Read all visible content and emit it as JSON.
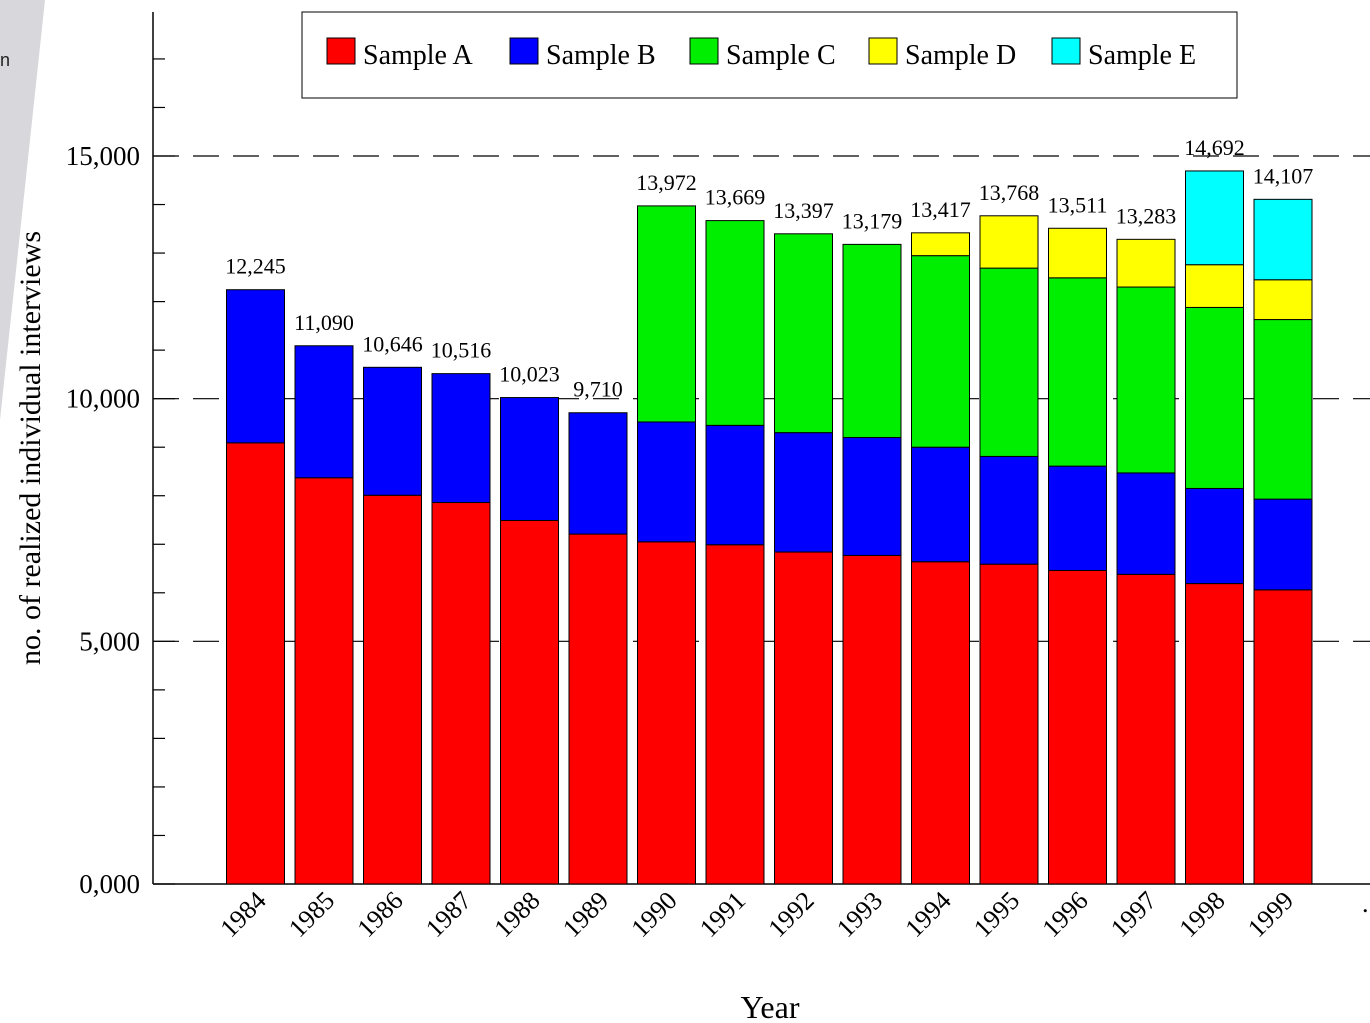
{
  "corner_fragment": "n",
  "colors": {
    "Sample A": "#ff0000",
    "Sample B": "#0000ff",
    "Sample C": "#00ee00",
    "Sample D": "#ffff00",
    "Sample E": "#00ffff",
    "gridline": "#000000",
    "background_wedge": "#d8d8dc"
  },
  "chart_data": {
    "type": "bar",
    "stacked": true,
    "title": "",
    "xlabel": "Year",
    "ylabel": "no. of realized individual interviews",
    "ylim": [
      0,
      17500
    ],
    "yticks": [
      0,
      5000,
      10000,
      15000
    ],
    "ytick_labels": [
      "0,000",
      "5,000",
      "10,000",
      "15,000"
    ],
    "yminor_step": 1000,
    "grid": "dashed horizontal lines at major ticks",
    "legend_position": "top-center",
    "extra_xtick_label": ".",
    "categories": [
      "1984",
      "1985",
      "1986",
      "1987",
      "1988",
      "1989",
      "1990",
      "1991",
      "1992",
      "1993",
      "1994",
      "1995",
      "1996",
      "1997",
      "1998",
      "1999"
    ],
    "totals": [
      12245,
      11090,
      10646,
      10516,
      10023,
      9710,
      13972,
      13669,
      13397,
      13179,
      13417,
      13768,
      13511,
      13283,
      14692,
      14107
    ],
    "total_labels": [
      "12,245",
      "11,090",
      "10,646",
      "10,516",
      "10,023",
      "9,710",
      "13,972",
      "13,669",
      "13,397",
      "13,179",
      "13,417",
      "13,768",
      "13,511",
      "13,283",
      "14,692",
      "14,107"
    ],
    "series": [
      {
        "name": "Sample A",
        "values": [
          9090,
          8370,
          8010,
          7860,
          7490,
          7210,
          7050,
          6990,
          6840,
          6770,
          6640,
          6590,
          6460,
          6380,
          6190,
          6060
        ]
      },
      {
        "name": "Sample B",
        "values": [
          3155,
          2720,
          2636,
          2656,
          2533,
          2500,
          2470,
          2460,
          2460,
          2430,
          2360,
          2220,
          2150,
          2090,
          1960,
          1870
        ]
      },
      {
        "name": "Sample C",
        "values": [
          0,
          0,
          0,
          0,
          0,
          0,
          4452,
          4219,
          4097,
          3979,
          3947,
          3880,
          3880,
          3830,
          3730,
          3700
        ]
      },
      {
        "name": "Sample D",
        "values": [
          0,
          0,
          0,
          0,
          0,
          0,
          0,
          0,
          0,
          0,
          470,
          1078,
          1021,
          983,
          880,
          820
        ]
      },
      {
        "name": "Sample E",
        "values": [
          0,
          0,
          0,
          0,
          0,
          0,
          0,
          0,
          0,
          0,
          0,
          0,
          0,
          0,
          1932,
          1657
        ]
      }
    ]
  }
}
